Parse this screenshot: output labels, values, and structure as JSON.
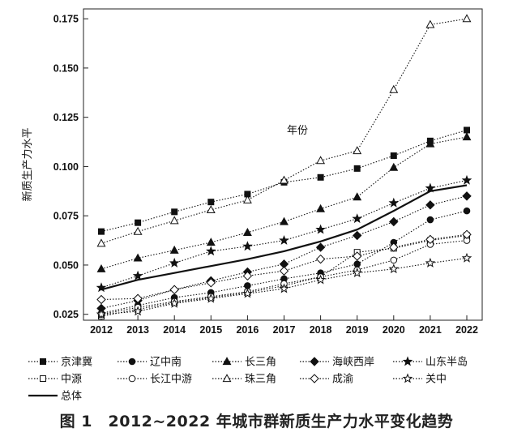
{
  "caption": "图 1　2012~2022 年城市群新质生产力水平变化趋势",
  "chart_data": {
    "type": "line",
    "title": "",
    "xlabel": "年份",
    "ylabel": "新质生产力水平",
    "ylim": [
      0.022,
      0.18
    ],
    "yticks": [
      "0.025",
      "0.050",
      "0.075",
      "0.100",
      "0.125",
      "0.150",
      "0.175"
    ],
    "categories": [
      "2012",
      "2013",
      "2014",
      "2015",
      "2016",
      "2017",
      "2018",
      "2019",
      "2020",
      "2021",
      "2022"
    ],
    "grid": false,
    "legend_position": "bottom",
    "series": [
      {
        "name": "京津冀",
        "marker": "square-filled",
        "values": [
          0.067,
          0.0715,
          0.077,
          0.082,
          0.086,
          0.092,
          0.0945,
          0.099,
          0.1055,
          0.113,
          0.1185
        ]
      },
      {
        "name": "辽中南",
        "marker": "circle-filled",
        "values": [
          0.0255,
          0.0295,
          0.0335,
          0.036,
          0.0395,
          0.043,
          0.046,
          0.0505,
          0.0615,
          0.073,
          0.0775
        ]
      },
      {
        "name": "长三角",
        "marker": "triangle-filled",
        "values": [
          0.048,
          0.0535,
          0.0575,
          0.0615,
          0.0665,
          0.072,
          0.0785,
          0.0845,
          0.0995,
          0.1115,
          0.115
        ]
      },
      {
        "name": "海峡西岸",
        "marker": "diamond-filled",
        "values": [
          0.028,
          0.032,
          0.0375,
          0.042,
          0.0465,
          0.0505,
          0.059,
          0.065,
          0.072,
          0.0805,
          0.085
        ]
      },
      {
        "name": "山东半岛",
        "marker": "star-filled",
        "values": [
          0.0385,
          0.0445,
          0.051,
          0.057,
          0.0595,
          0.0625,
          0.068,
          0.0735,
          0.0815,
          0.089,
          0.093
        ]
      },
      {
        "name": "中源",
        "marker": "square-open",
        "values": [
          0.024,
          0.0275,
          0.031,
          0.0335,
          0.036,
          0.0395,
          0.044,
          0.0565,
          0.0585,
          0.0625,
          0.065
        ]
      },
      {
        "name": "长江中游",
        "marker": "circle-open",
        "values": [
          0.025,
          0.0285,
          0.0315,
          0.034,
          0.0365,
          0.0405,
          0.044,
          0.0475,
          0.0525,
          0.0605,
          0.0625
        ]
      },
      {
        "name": "珠三角",
        "marker": "triangle-open",
        "values": [
          0.061,
          0.067,
          0.0725,
          0.078,
          0.083,
          0.093,
          0.103,
          0.108,
          0.139,
          0.172,
          0.175
        ]
      },
      {
        "name": "成渝",
        "marker": "diamond-open",
        "values": [
          0.0325,
          0.033,
          0.0375,
          0.041,
          0.0445,
          0.047,
          0.053,
          0.0545,
          0.059,
          0.063,
          0.0655
        ]
      },
      {
        "name": "关中",
        "marker": "star-open",
        "values": [
          0.025,
          0.0265,
          0.0305,
          0.033,
          0.0355,
          0.038,
          0.0425,
          0.046,
          0.048,
          0.051,
          0.0535
        ]
      },
      {
        "name": "总体",
        "marker": "none",
        "line": "solid",
        "values": [
          0.0375,
          0.0425,
          0.046,
          0.0495,
          0.053,
          0.057,
          0.062,
          0.068,
          0.0775,
          0.0875,
          0.0905
        ]
      }
    ]
  }
}
